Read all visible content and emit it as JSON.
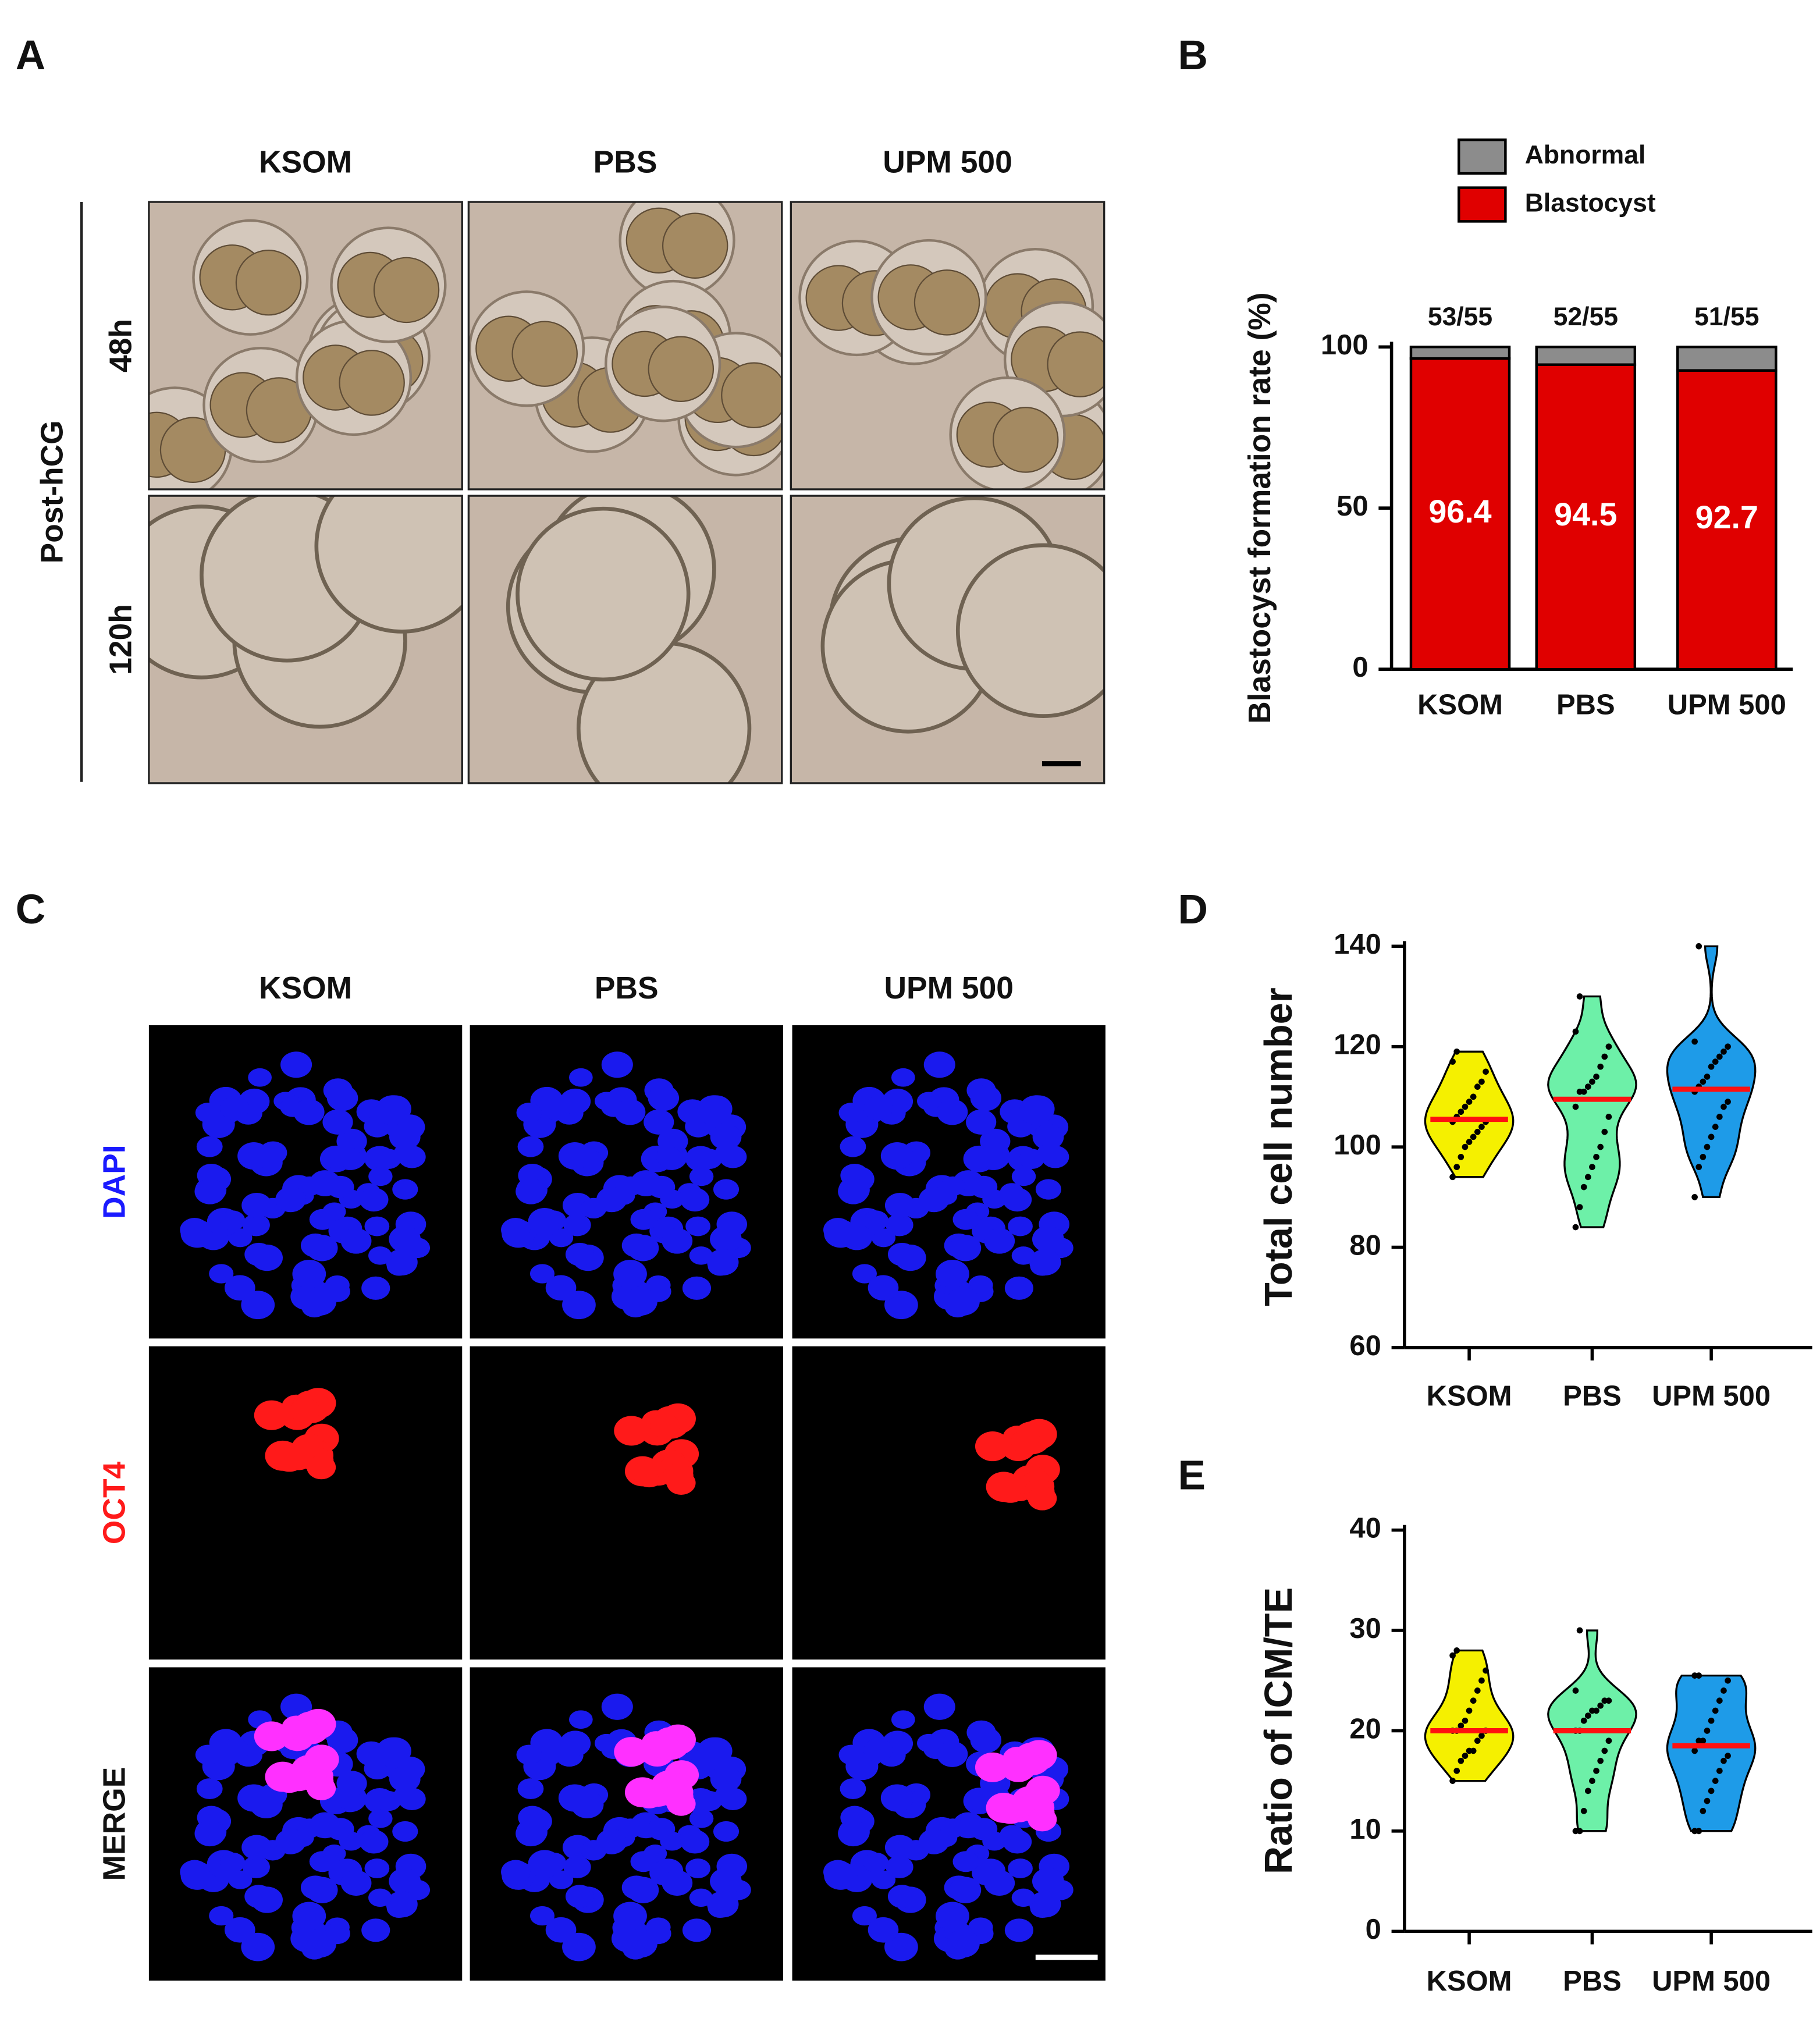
{
  "figure": {
    "panel_labels": [
      "A",
      "B",
      "C",
      "D",
      "E"
    ],
    "a": {
      "columns": [
        "KSOM",
        "PBS",
        "UPM 500"
      ],
      "rows": [
        "48h",
        "120h"
      ],
      "group": "Post-hCG"
    },
    "c": {
      "columns": [
        "KSOM",
        "PBS",
        "UPM 500"
      ],
      "rows": [
        "DAPI",
        "OCT4",
        "MERGE"
      ],
      "row_colors": [
        "#1a1aff",
        "#ff1a1a",
        "#111111"
      ]
    }
  },
  "chart_data": [
    {
      "type": "stacked_bar",
      "ylabel": "Blastocyst formation rate (%)",
      "categories": [
        "KSOM",
        "PBS",
        "UPM 500"
      ],
      "series": [
        {
          "name": "Blastocyst",
          "color": "#e00000",
          "values": [
            96.4,
            94.5,
            92.7
          ]
        },
        {
          "name": "Abnormal",
          "color": "#8c8c8c",
          "values": [
            3.6,
            5.5,
            7.3
          ]
        }
      ],
      "annotations": [
        "53/55",
        "52/55",
        "51/55"
      ],
      "ylim": [
        0,
        100
      ],
      "yticks": [
        0,
        50,
        100
      ]
    },
    {
      "type": "violin",
      "ylabel": "Total cell number",
      "categories": [
        "KSOM",
        "PBS",
        "UPM 500"
      ],
      "colors": [
        "#f5f000",
        "#6df0a8",
        "#1e9be8"
      ],
      "median_color": "#ff1010",
      "points": [
        [
          94,
          96,
          98,
          100,
          101,
          102,
          103,
          104,
          105,
          105,
          106,
          107,
          108,
          109,
          110,
          112,
          113,
          115,
          117,
          119
        ],
        [
          84,
          88,
          92,
          94,
          96,
          98,
          100,
          103,
          106,
          108,
          111,
          111,
          112,
          113,
          114,
          116,
          118,
          120,
          123,
          130
        ],
        [
          90,
          96,
          98,
          100,
          102,
          104,
          106,
          108,
          109,
          111,
          112,
          113,
          114,
          116,
          117,
          118,
          119,
          120,
          121,
          140
        ]
      ],
      "medians": [
        105.5,
        109.5,
        111.5
      ],
      "ylim": [
        60,
        140
      ],
      "yticks": [
        60,
        80,
        100,
        120,
        140
      ]
    },
    {
      "type": "violin",
      "ylabel": "Ratio of ICM/TE",
      "categories": [
        "KSOM",
        "PBS",
        "UPM 500"
      ],
      "colors": [
        "#f5f000",
        "#6df0a8",
        "#1e9be8"
      ],
      "median_color": "#ff1010",
      "points": [
        [
          15,
          16,
          17,
          17.5,
          18,
          18,
          19,
          19.5,
          20,
          20,
          20,
          20.5,
          21,
          22,
          23,
          24,
          25,
          26,
          27.5,
          28
        ],
        [
          10,
          10,
          12,
          14,
          15,
          16,
          17,
          18,
          19,
          20,
          20,
          21,
          21.5,
          22,
          22,
          22.5,
          23,
          23,
          24,
          30
        ],
        [
          10,
          10,
          12,
          13,
          14,
          15,
          16,
          17,
          17.5,
          18,
          19,
          19,
          20,
          21,
          22,
          23,
          24,
          25,
          25.5,
          25.5
        ]
      ],
      "medians": [
        20,
        20,
        18.5
      ],
      "ylim": [
        0,
        40
      ],
      "yticks": [
        0,
        10,
        20,
        30,
        40
      ]
    }
  ]
}
